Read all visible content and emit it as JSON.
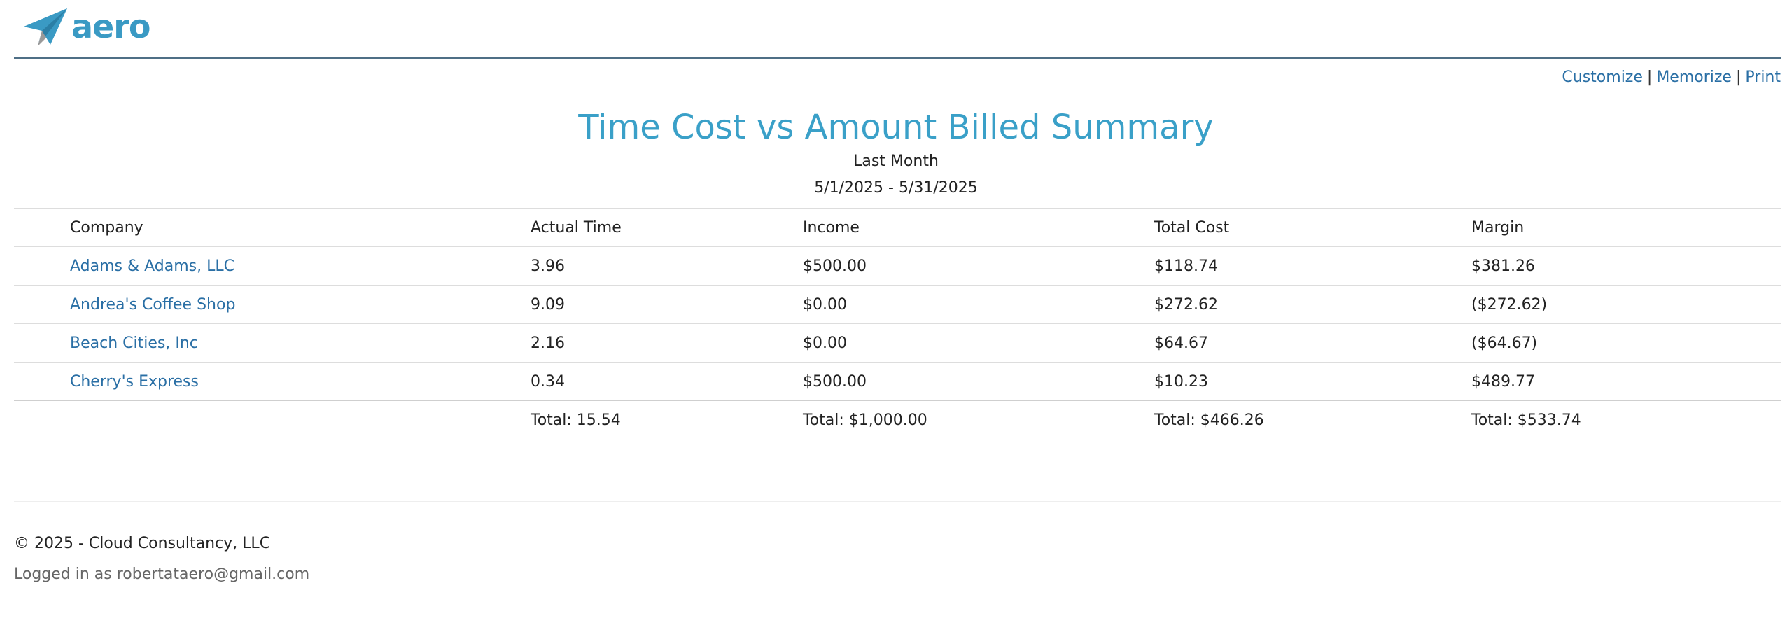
{
  "brand": {
    "logo_text": "aero",
    "logo_icon": "paper-plane-icon",
    "color": "#3a9ac4"
  },
  "actions": {
    "customize": "Customize",
    "memorize": "Memorize",
    "print": "Print",
    "separator": "|"
  },
  "report": {
    "title": "Time Cost vs Amount Billed Summary",
    "period": "Last Month",
    "date_range": "5/1/2025 - 5/31/2025",
    "columns": [
      "Company",
      "Actual Time",
      "Income",
      "Total Cost",
      "Margin"
    ],
    "rows": [
      {
        "company": "Adams & Adams, LLC",
        "actual_time": "3.96",
        "income": "$500.00",
        "total_cost": "$118.74",
        "margin": "$381.26"
      },
      {
        "company": "Andrea's Coffee Shop",
        "actual_time": "9.09",
        "income": "$0.00",
        "total_cost": "$272.62",
        "margin": "($272.62)"
      },
      {
        "company": "Beach Cities, Inc",
        "actual_time": "2.16",
        "income": "$0.00",
        "total_cost": "$64.67",
        "margin": "($64.67)"
      },
      {
        "company": "Cherry's Express",
        "actual_time": "0.34",
        "income": "$500.00",
        "total_cost": "$10.23",
        "margin": "$489.77"
      }
    ],
    "totals": {
      "actual_time": "Total: 15.54",
      "income": "Total: $1,000.00",
      "total_cost": "Total: $466.26",
      "margin": "Total: $533.74"
    }
  },
  "footer": {
    "copyright": "© 2025 - Cloud Consultancy, LLC",
    "logged_in": "Logged in as robertataero@gmail.com"
  }
}
